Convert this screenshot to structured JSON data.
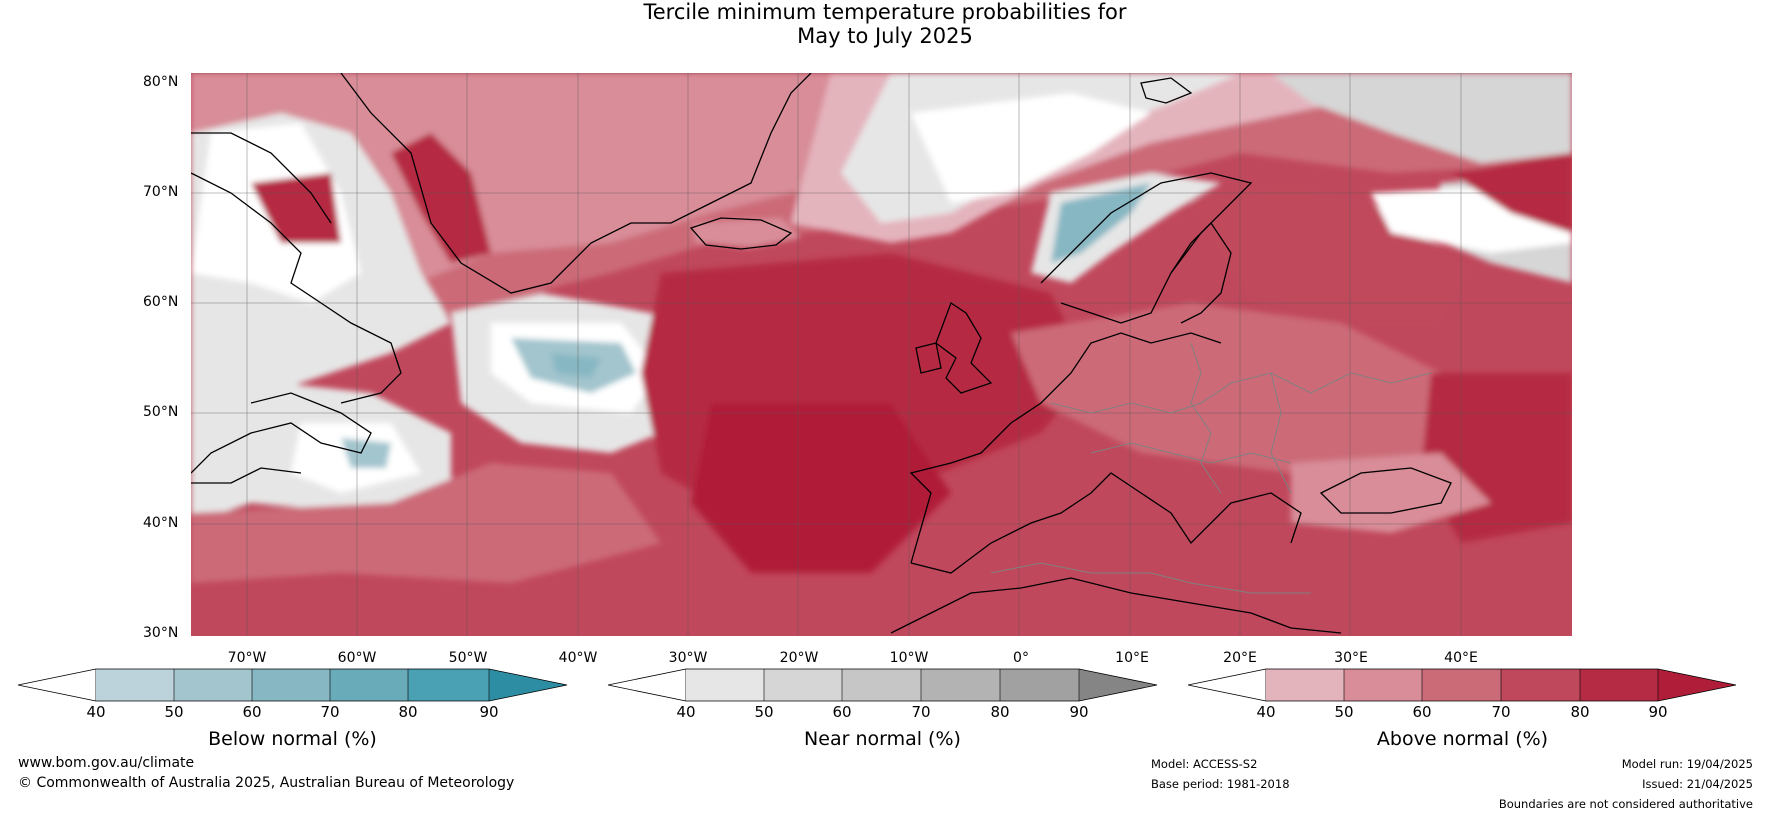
{
  "title_line1": "Tercile minimum temperature probabilities for",
  "title_line2": "May to July 2025",
  "lat_labels": [
    "80°N",
    "70°N",
    "60°N",
    "50°N",
    "40°N",
    "30°N"
  ],
  "lon_labels": [
    "70°W",
    "60°W",
    "50°W",
    "40°W",
    "30°W",
    "20°W",
    "10°W",
    "0°",
    "10°E",
    "20°E",
    "30°E",
    "40°E"
  ],
  "colorbars": [
    {
      "label": "Below normal (%)",
      "ticks": [
        "40",
        "50",
        "60",
        "70",
        "80",
        "90"
      ],
      "colors": [
        "#ffffff",
        "#bcd3db",
        "#a3c5ce",
        "#87b7c3",
        "#6aabb9",
        "#4aa1b3",
        "#2d8ea3"
      ]
    },
    {
      "label": "Near normal (%)",
      "ticks": [
        "40",
        "50",
        "60",
        "70",
        "80",
        "90"
      ],
      "colors": [
        "#ffffff",
        "#e6e6e6",
        "#d6d6d6",
        "#c6c6c6",
        "#b3b3b3",
        "#a1a1a1",
        "#858585"
      ]
    },
    {
      "label": "Above normal (%)",
      "ticks": [
        "40",
        "50",
        "60",
        "70",
        "80",
        "90"
      ],
      "colors": [
        "#ffffff",
        "#e4b4bd",
        "#d88d98",
        "#cc6b78",
        "#c0485c",
        "#b52b43",
        "#b01d38"
      ]
    }
  ],
  "footer": {
    "url": "www.bom.gov.au/climate",
    "copyright": "© Commonwealth of Australia 2025, Australian Bureau of Meteorology",
    "model": "Model: ACCESS-S2",
    "base_period": "Base period: 1981-2018",
    "model_run": "Model run: 19/04/2025",
    "issued": "Issued: 21/04/2025",
    "disclaimer": "Boundaries are not considered authoritative"
  }
}
